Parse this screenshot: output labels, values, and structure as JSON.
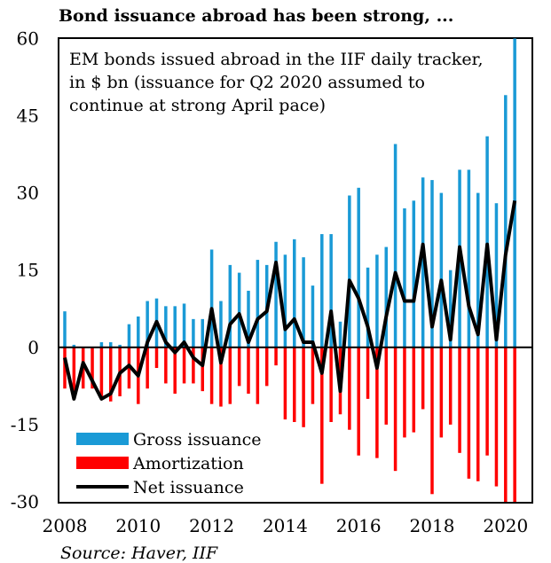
{
  "chart_data": {
    "type": "bar",
    "title": "Bond issuance abroad has been strong, ...",
    "annotation": [
      "EM bonds issued abroad in the IIF daily tracker,",
      "in $ bn (issuance for Q2 2020 assumed to",
      "continue at strong April pace)"
    ],
    "source": "Source: Haver, IIF",
    "xlabel": "",
    "ylabel": "",
    "ylim": [
      -30,
      60
    ],
    "yticks": [
      "60",
      "45",
      "30",
      "15",
      "0",
      "-15",
      "-30"
    ],
    "ytick_values": [
      60,
      45,
      30,
      15,
      0,
      -15,
      -30
    ],
    "xticks": [
      "2008",
      "2010",
      "2012",
      "2014",
      "2016",
      "2018",
      "2020"
    ],
    "x_start": "2008Q1",
    "x_end": "2020Q2",
    "frequency": "quarterly",
    "legend_position": "bottom-left",
    "colors": {
      "gross": "#1a9ad6",
      "amort": "#ff0000",
      "net": "#000000"
    },
    "series": [
      {
        "name": "Gross issuance",
        "type": "bar",
        "values": [
          7,
          0.5,
          0,
          0,
          1,
          1,
          0.5,
          4.5,
          6,
          9,
          9.5,
          8,
          8,
          8.5,
          5.5,
          5.5,
          19,
          9,
          16,
          14.5,
          11,
          17,
          16,
          20.5,
          18,
          21,
          17.5,
          12,
          22,
          22,
          5,
          29.5,
          31,
          15.5,
          18,
          19.5,
          39.5,
          27,
          28.5,
          33,
          32.5,
          30,
          15,
          34.5,
          34.5,
          30,
          41,
          28,
          49,
          60
        ]
      },
      {
        "name": "Amortization",
        "type": "bar",
        "values": [
          -8,
          -10,
          -8,
          -8,
          -9.5,
          -10.5,
          -9.5,
          -8,
          -11,
          -8,
          -4,
          -7,
          -9,
          -7,
          -7,
          -8.5,
          -11,
          -11.5,
          -11,
          -7.5,
          -9,
          -11,
          -7.5,
          -3.5,
          -14,
          -14.5,
          -15.5,
          -11,
          -26.5,
          -14.5,
          -13,
          -16,
          -21,
          -10,
          -21.5,
          -15,
          -24,
          -17.5,
          -16.5,
          -12,
          -28.5,
          -17.5,
          -15,
          -20.5,
          -25.5,
          -26,
          -21,
          -27,
          -30,
          -30
        ]
      },
      {
        "name": "Net issuance",
        "type": "line",
        "values": [
          -2,
          -10,
          -3,
          -6.5,
          -10,
          -9,
          -5,
          -3.5,
          -5.5,
          1,
          5,
          1,
          -1,
          1,
          -2,
          -3.5,
          7.5,
          -3,
          4.5,
          6.5,
          1,
          5.5,
          7,
          16.5,
          3.5,
          5.5,
          1,
          1,
          -5,
          7,
          -8.5,
          13,
          9.5,
          4,
          -4,
          6,
          14.5,
          9,
          9,
          20,
          4,
          13,
          1.5,
          19.5,
          8,
          2.5,
          20,
          1.5,
          18,
          28.5
        ]
      }
    ]
  }
}
